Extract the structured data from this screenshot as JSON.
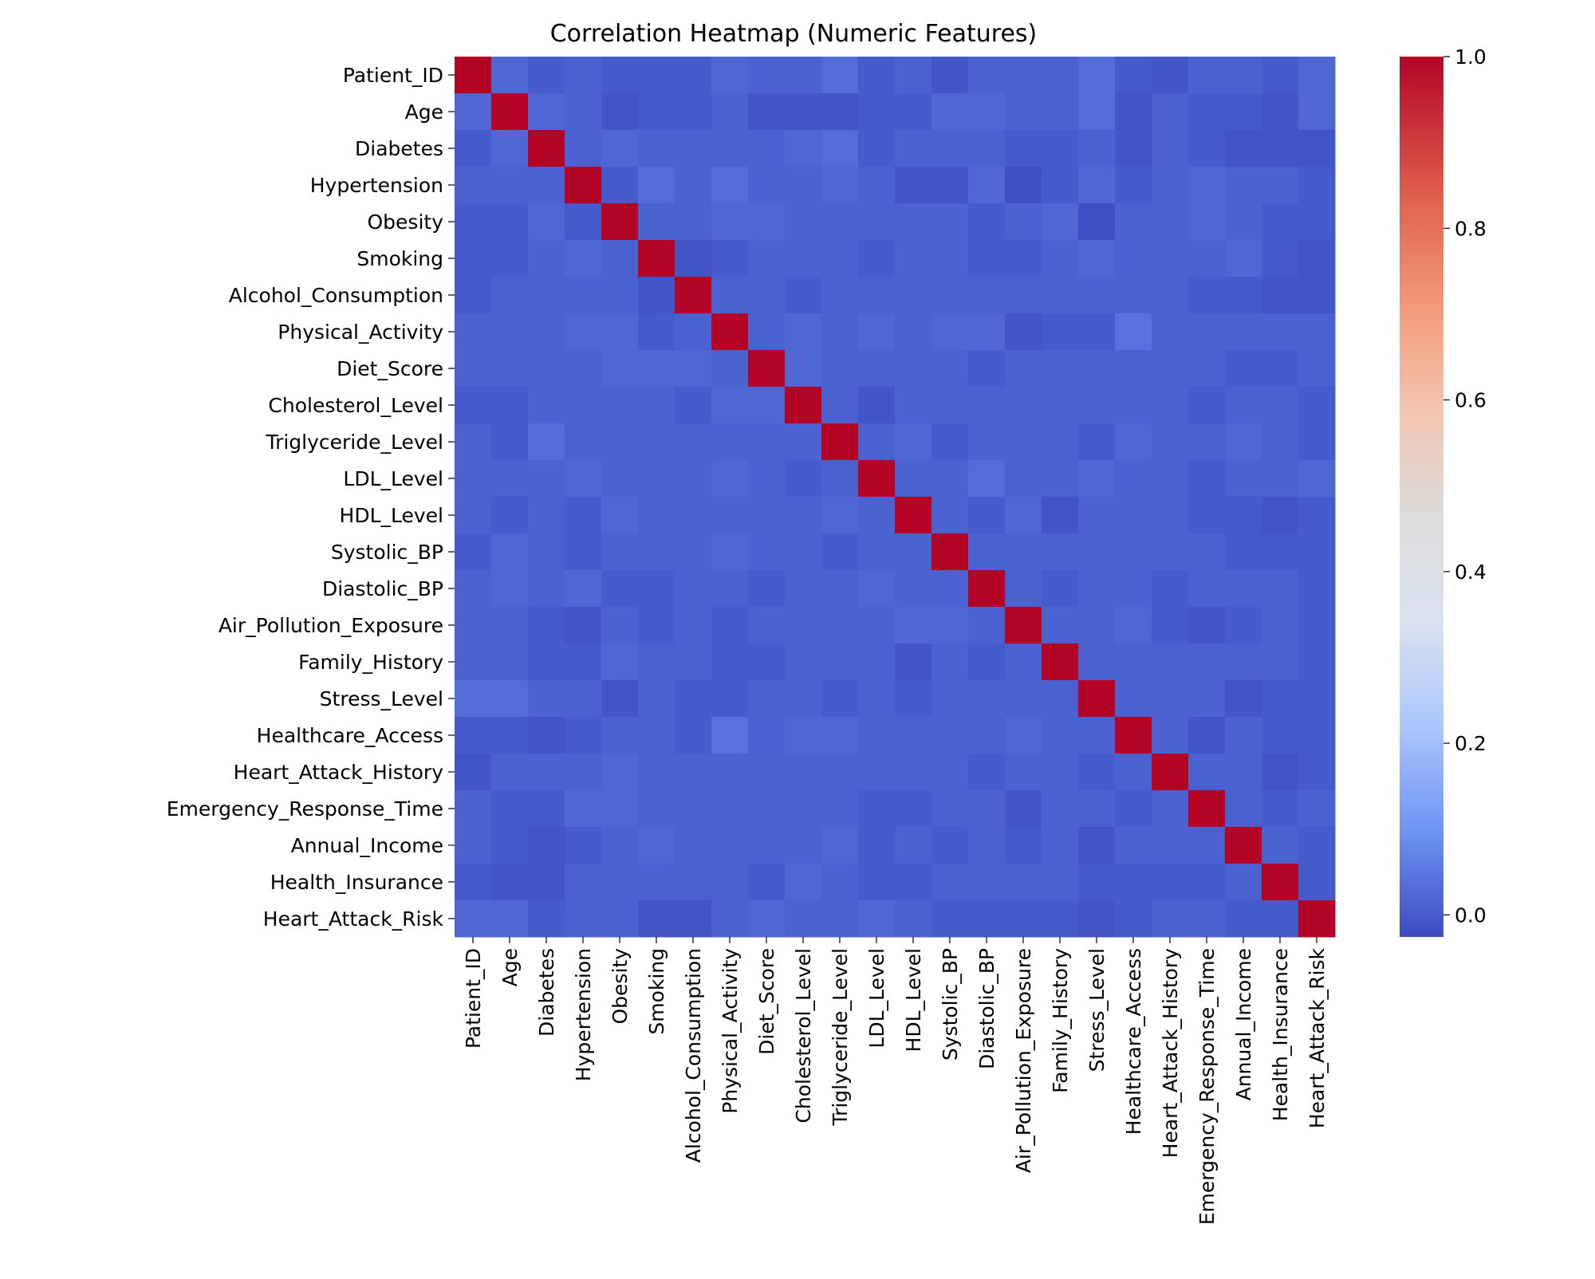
{
  "chart_data": {
    "type": "heatmap",
    "title": "Correlation Heatmap (Numeric Features)",
    "xlabel": "",
    "ylabel": "",
    "labels": [
      "Patient_ID",
      "Age",
      "Diabetes",
      "Hypertension",
      "Obesity",
      "Smoking",
      "Alcohol_Consumption",
      "Physical_Activity",
      "Diet_Score",
      "Cholesterol_Level",
      "Triglyceride_Level",
      "LDL_Level",
      "HDL_Level",
      "Systolic_BP",
      "Diastolic_BP",
      "Air_Pollution_Exposure",
      "Family_History",
      "Stress_Level",
      "Healthcare_Access",
      "Heart_Attack_History",
      "Emergency_Response_Time",
      "Annual_Income",
      "Health_Insurance",
      "Heart_Attack_Risk"
    ],
    "values": [
      [
        1.0,
        0.02,
        0.0,
        0.01,
        0.0,
        0.0,
        0.0,
        0.02,
        0.01,
        0.01,
        0.03,
        0.0,
        0.01,
        -0.01,
        0.01,
        0.01,
        0.01,
        0.03,
        0.0,
        -0.01,
        0.01,
        0.01,
        0.0,
        0.02
      ],
      [
        0.02,
        1.0,
        0.02,
        0.01,
        -0.01,
        0.0,
        0.0,
        0.01,
        -0.01,
        -0.01,
        -0.01,
        0.0,
        0.0,
        0.02,
        0.02,
        0.01,
        0.01,
        0.03,
        -0.01,
        0.01,
        0.0,
        0.0,
        -0.01,
        0.02
      ],
      [
        0.0,
        0.02,
        1.0,
        0.01,
        0.02,
        0.01,
        0.01,
        0.01,
        0.01,
        0.02,
        0.03,
        0.0,
        0.01,
        0.01,
        0.01,
        0.0,
        0.0,
        0.01,
        -0.01,
        0.01,
        0.0,
        -0.01,
        -0.01,
        -0.01
      ],
      [
        0.01,
        0.01,
        0.01,
        1.0,
        0.0,
        0.03,
        0.01,
        0.03,
        0.01,
        0.01,
        0.02,
        0.01,
        -0.01,
        -0.01,
        0.02,
        -0.02,
        0.0,
        0.02,
        0.0,
        0.01,
        0.02,
        0.01,
        0.01,
        0.0
      ],
      [
        0.0,
        0.0,
        0.02,
        0.0,
        1.0,
        0.01,
        0.01,
        0.02,
        0.02,
        0.01,
        0.01,
        0.01,
        0.01,
        0.01,
        0.0,
        0.01,
        0.02,
        -0.02,
        0.01,
        0.01,
        0.02,
        0.01,
        0.0,
        0.0
      ],
      [
        0.0,
        0.0,
        0.01,
        0.02,
        0.01,
        1.0,
        -0.01,
        0.0,
        0.01,
        0.01,
        0.01,
        0.0,
        0.01,
        0.01,
        0.0,
        0.0,
        0.01,
        0.02,
        0.01,
        0.01,
        0.01,
        0.02,
        0.0,
        -0.01
      ],
      [
        0.0,
        0.01,
        0.01,
        0.01,
        0.01,
        -0.01,
        1.0,
        0.01,
        0.01,
        0.0,
        0.01,
        0.01,
        0.01,
        0.01,
        0.01,
        0.01,
        0.01,
        0.01,
        0.01,
        0.01,
        0.0,
        0.0,
        -0.01,
        -0.01
      ],
      [
        0.01,
        0.01,
        0.01,
        0.02,
        0.02,
        0.0,
        0.01,
        1.0,
        0.01,
        0.02,
        0.01,
        0.02,
        0.01,
        0.02,
        0.02,
        -0.01,
        0.0,
        0.0,
        0.04,
        0.01,
        0.01,
        0.01,
        0.01,
        0.01
      ],
      [
        0.01,
        0.01,
        0.01,
        0.01,
        0.02,
        0.02,
        0.02,
        0.01,
        1.0,
        0.02,
        0.01,
        0.01,
        0.01,
        0.01,
        0.0,
        0.01,
        0.01,
        0.01,
        0.01,
        0.01,
        0.01,
        0.0,
        0.0,
        0.01
      ],
      [
        0.0,
        0.0,
        0.01,
        0.01,
        0.01,
        0.01,
        0.0,
        0.02,
        0.02,
        1.0,
        0.01,
        -0.01,
        0.01,
        0.01,
        0.01,
        0.01,
        0.01,
        0.01,
        0.01,
        0.01,
        0.0,
        0.01,
        0.01,
        0.0
      ],
      [
        0.01,
        0.0,
        0.03,
        0.01,
        0.01,
        0.01,
        0.01,
        0.01,
        0.01,
        0.01,
        1.0,
        0.01,
        0.02,
        0.0,
        0.01,
        0.01,
        0.01,
        0.0,
        0.02,
        0.01,
        0.01,
        0.02,
        0.01,
        0.0
      ],
      [
        0.01,
        0.01,
        0.01,
        0.02,
        0.01,
        0.01,
        0.01,
        0.02,
        0.01,
        0.0,
        0.01,
        1.0,
        0.01,
        0.01,
        0.03,
        0.01,
        0.01,
        0.02,
        0.01,
        0.01,
        0.0,
        0.01,
        0.01,
        0.02
      ],
      [
        0.01,
        0.0,
        0.01,
        0.0,
        0.02,
        0.01,
        0.01,
        0.01,
        0.01,
        0.01,
        0.02,
        0.01,
        1.0,
        0.01,
        0.0,
        0.02,
        -0.01,
        0.01,
        0.01,
        0.01,
        0.0,
        0.0,
        -0.01,
        0.0
      ],
      [
        0.0,
        0.02,
        0.01,
        0.0,
        0.01,
        0.01,
        0.01,
        0.02,
        0.01,
        0.01,
        0.0,
        0.01,
        0.01,
        1.0,
        0.01,
        0.01,
        0.01,
        0.01,
        0.01,
        0.01,
        0.01,
        0.0,
        0.0,
        0.0
      ],
      [
        0.01,
        0.02,
        0.01,
        0.02,
        0.0,
        0.0,
        0.01,
        0.01,
        0.0,
        0.01,
        0.01,
        0.02,
        0.01,
        0.01,
        1.0,
        0.01,
        0.0,
        0.01,
        0.01,
        0.0,
        0.01,
        0.01,
        0.01,
        0.0
      ],
      [
        0.01,
        0.01,
        0.0,
        -0.01,
        0.01,
        0.0,
        0.01,
        0.0,
        0.01,
        0.01,
        0.01,
        0.01,
        0.02,
        0.02,
        0.01,
        1.0,
        0.01,
        0.01,
        0.02,
        0.0,
        -0.01,
        0.0,
        0.01,
        0.0
      ],
      [
        0.01,
        0.01,
        0.0,
        0.0,
        0.02,
        0.01,
        0.01,
        0.0,
        0.0,
        0.01,
        0.01,
        0.01,
        -0.01,
        0.01,
        0.0,
        0.01,
        1.0,
        0.01,
        0.01,
        0.01,
        0.01,
        0.01,
        0.01,
        0.0
      ],
      [
        0.03,
        0.03,
        0.01,
        0.01,
        -0.01,
        0.01,
        0.0,
        0.0,
        0.01,
        0.01,
        0.0,
        0.01,
        0.0,
        0.01,
        0.01,
        0.01,
        0.01,
        1.0,
        0.01,
        0.01,
        0.01,
        -0.01,
        0.0,
        0.0
      ],
      [
        0.0,
        0.0,
        -0.01,
        0.0,
        0.01,
        0.01,
        0.0,
        0.04,
        0.01,
        0.02,
        0.02,
        0.01,
        0.01,
        0.01,
        0.01,
        0.02,
        0.01,
        0.01,
        1.0,
        0.01,
        -0.01,
        0.01,
        0.0,
        0.0
      ],
      [
        -0.01,
        0.01,
        0.01,
        0.01,
        0.02,
        0.01,
        0.01,
        0.01,
        0.01,
        0.01,
        0.01,
        0.01,
        0.01,
        0.01,
        0.0,
        0.01,
        0.01,
        0.0,
        0.01,
        1.0,
        0.01,
        0.01,
        -0.01,
        0.0
      ],
      [
        0.01,
        0.0,
        0.0,
        0.02,
        0.02,
        0.01,
        0.01,
        0.01,
        0.01,
        0.01,
        0.01,
        0.0,
        0.0,
        0.01,
        0.01,
        -0.01,
        0.01,
        0.01,
        0.0,
        0.01,
        1.0,
        0.01,
        0.0,
        0.01
      ],
      [
        0.01,
        0.0,
        -0.01,
        0.0,
        0.01,
        0.02,
        0.01,
        0.01,
        0.01,
        0.01,
        0.02,
        0.0,
        0.01,
        0.0,
        0.01,
        0.0,
        0.01,
        -0.01,
        0.01,
        0.01,
        0.01,
        1.0,
        0.01,
        0.0
      ],
      [
        0.0,
        -0.01,
        -0.01,
        0.01,
        0.01,
        0.01,
        0.01,
        0.01,
        0.0,
        0.02,
        0.01,
        0.0,
        0.0,
        0.01,
        0.01,
        0.01,
        0.01,
        0.0,
        0.0,
        0.0,
        0.0,
        0.01,
        1.0,
        0.0
      ],
      [
        0.02,
        0.02,
        0.0,
        0.01,
        0.01,
        -0.01,
        -0.01,
        0.01,
        0.02,
        0.01,
        0.01,
        0.02,
        0.01,
        0.0,
        0.0,
        0.0,
        0.0,
        -0.01,
        0.0,
        0.01,
        0.01,
        0.0,
        0.0,
        1.0
      ]
    ],
    "colormap": {
      "name": "coolwarm",
      "stops": [
        {
          "v": -0.0257,
          "color": "#3b4cc0"
        },
        {
          "v": 0.096,
          "color": "#6f92f3"
        },
        {
          "v": 0.218,
          "color": "#aac7fd"
        },
        {
          "v": 0.34,
          "color": "#d9e2f0"
        },
        {
          "v": 0.462,
          "color": "#dddcdc"
        },
        {
          "v": 0.584,
          "color": "#f3c7b1"
        },
        {
          "v": 0.706,
          "color": "#f49a7b"
        },
        {
          "v": 0.828,
          "color": "#e0654f"
        },
        {
          "v": 1.0,
          "color": "#b40426"
        }
      ]
    },
    "vmin": -0.0257,
    "vmax": 1.0,
    "colorbar_ticks": [
      "0.0",
      "0.2",
      "0.4",
      "0.6",
      "0.8",
      "1.0"
    ],
    "grid": false
  }
}
